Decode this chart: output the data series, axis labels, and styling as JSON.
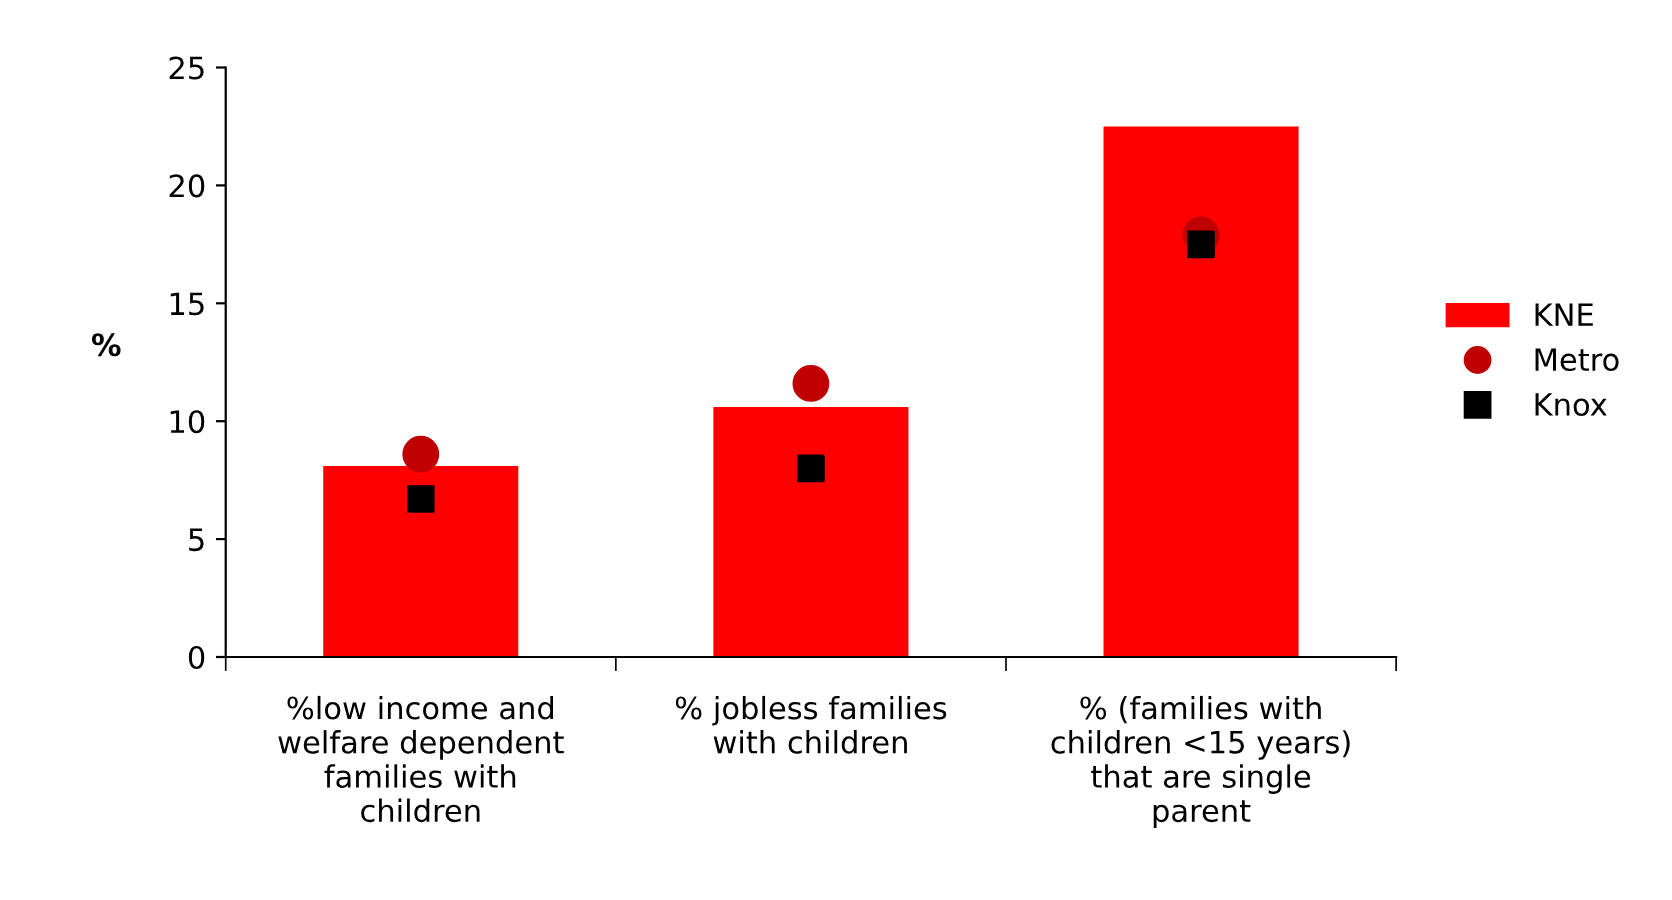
{
  "chart_data": {
    "type": "bar",
    "ylabel": "%",
    "categories": [
      "%low income and\nwelfare dependent\nfamilies with\nchildren",
      "% jobless families\nwith children",
      "% (families with\nchildren <15 years)\nthat are single\nparent"
    ],
    "series": [
      {
        "name": "KNE",
        "color": "#ff0000",
        "values": [
          8.1,
          10.6,
          22.5
        ]
      },
      {
        "name": "Metro",
        "type": "scatter",
        "marker": "circle",
        "color": "#c00000",
        "x": [
          "%low income and\nwelfare dependent\nfamilies with\nchildren",
          "% jobless families\nwith children",
          "% (families with\nchildren <15 years)\nthat are single\nparent"
        ],
        "values": [
          8.6,
          11.6,
          17.9
        ]
      },
      {
        "name": "Knox",
        "type": "scatter",
        "marker": "square",
        "color": "#000000",
        "x": [
          "%low income and\nwelfare dependent\nfamilies with\nchildren",
          "% jobless families\nwith children",
          "% (families with\nchildren <15 years)\nthat are single\nparent"
        ],
        "values": [
          6.7,
          8.0,
          17.5
        ]
      }
    ],
    "ylim": [
      0,
      25
    ],
    "yticks": [
      0,
      5,
      10,
      15,
      20,
      25
    ],
    "grid": false,
    "legend": "right"
  }
}
